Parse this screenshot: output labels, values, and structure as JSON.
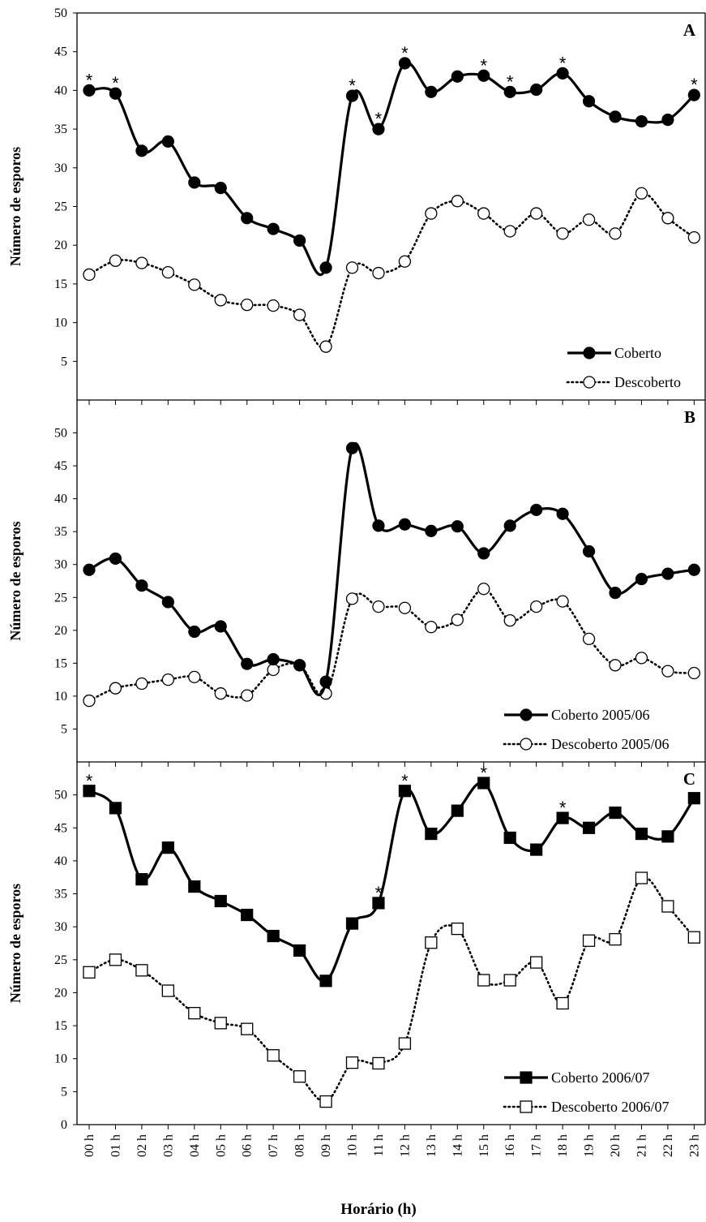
{
  "x_axis_label": "Horário (h)",
  "chart_data": [
    {
      "type": "line",
      "panel": "A",
      "ylabel": "Número de esporos",
      "ylim": [
        0,
        50
      ],
      "yticks": [
        5,
        10,
        15,
        20,
        25,
        30,
        35,
        40,
        45,
        50
      ],
      "categories": [
        "00 h",
        "01 h",
        "02 h",
        "03 h",
        "04 h",
        "05 h",
        "06 h",
        "07 h",
        "08 h",
        "09 h",
        "10 h",
        "11 h",
        "12 h",
        "13 h",
        "14 h",
        "15 h",
        "16 h",
        "17 h",
        "18 h",
        "19 h",
        "20 h",
        "21 h",
        "22 h",
        "23 h"
      ],
      "legend_position": "bottom-right",
      "series": [
        {
          "name": "Coberto",
          "marker": "filled-circle",
          "line": "solid",
          "values": [
            40.0,
            39.6,
            32.2,
            33.4,
            28.1,
            27.4,
            23.5,
            22.1,
            20.6,
            17.1,
            39.3,
            35.0,
            43.5,
            39.8,
            41.8,
            41.9,
            39.8,
            40.1,
            42.2,
            38.6,
            36.6,
            36.0,
            36.2,
            39.4
          ],
          "significant": [
            "00 h",
            "01 h",
            "10 h",
            "11 h",
            "12 h",
            "15 h",
            "16 h",
            "18 h",
            "23 h"
          ]
        },
        {
          "name": "Descoberto",
          "marker": "open-circle",
          "line": "dotted",
          "values": [
            16.2,
            18.0,
            17.7,
            16.5,
            14.9,
            12.9,
            12.3,
            12.2,
            11.0,
            6.9,
            17.1,
            16.4,
            17.9,
            24.1,
            25.7,
            24.1,
            21.8,
            24.1,
            21.5,
            23.3,
            21.5,
            26.7,
            23.5,
            21.0
          ],
          "significant": []
        }
      ]
    },
    {
      "type": "line",
      "panel": "B",
      "ylabel": "Número de esporos",
      "ylim": [
        0,
        55
      ],
      "yticks": [
        5,
        10,
        15,
        20,
        25,
        30,
        35,
        40,
        45,
        50
      ],
      "categories": [
        "00 h",
        "01 h",
        "02 h",
        "03 h",
        "04 h",
        "05 h",
        "06 h",
        "07 h",
        "08 h",
        "09 h",
        "10 h",
        "11 h",
        "12 h",
        "13 h",
        "14 h",
        "15 h",
        "16 h",
        "17 h",
        "18 h",
        "19 h",
        "20 h",
        "21 h",
        "22 h",
        "23 h"
      ],
      "legend_position": "bottom-right",
      "series": [
        {
          "name": "Coberto 2005/06",
          "marker": "filled-circle",
          "line": "solid",
          "values": [
            29.2,
            30.9,
            26.8,
            24.3,
            19.8,
            20.6,
            14.9,
            15.6,
            14.7,
            12.2,
            47.7,
            35.9,
            36.1,
            35.1,
            35.8,
            31.7,
            35.9,
            38.3,
            37.7,
            32.0,
            25.7,
            27.8,
            28.6,
            29.2
          ],
          "significant": []
        },
        {
          "name": "Descoberto 2005/06",
          "marker": "open-circle",
          "line": "dotted",
          "values": [
            9.3,
            11.2,
            11.9,
            12.5,
            12.9,
            10.4,
            10.1,
            14.0,
            14.7,
            10.4,
            24.8,
            23.6,
            23.4,
            20.5,
            21.6,
            26.3,
            21.5,
            23.6,
            24.4,
            18.7,
            14.7,
            15.8,
            13.8,
            13.5
          ],
          "significant": []
        }
      ]
    },
    {
      "type": "line",
      "panel": "C",
      "ylabel": "Número de esporos",
      "ylim": [
        0,
        55
      ],
      "yticks": [
        0,
        5,
        10,
        15,
        20,
        25,
        30,
        35,
        40,
        45,
        50
      ],
      "categories": [
        "00 h",
        "01 h",
        "02 h",
        "03 h",
        "04 h",
        "05 h",
        "06 h",
        "07 h",
        "08 h",
        "09 h",
        "10 h",
        "11 h",
        "12 h",
        "13 h",
        "14 h",
        "15 h",
        "16 h",
        "17 h",
        "18 h",
        "19 h",
        "20 h",
        "21 h",
        "22 h",
        "23 h"
      ],
      "legend_position": "bottom-right",
      "series": [
        {
          "name": "Coberto 2006/07",
          "marker": "filled-square",
          "line": "solid",
          "values": [
            50.6,
            48.0,
            37.2,
            42.0,
            36.1,
            33.9,
            31.8,
            28.6,
            26.4,
            21.8,
            30.5,
            33.6,
            50.6,
            44.1,
            47.6,
            51.8,
            43.5,
            41.7,
            46.5,
            45.0,
            47.3,
            44.1,
            43.7,
            49.5
          ],
          "significant": [
            "00 h",
            "11 h",
            "12 h",
            "15 h",
            "18 h"
          ]
        },
        {
          "name": "Descoberto 2006/07",
          "marker": "open-square",
          "line": "dotted",
          "values": [
            23.1,
            25.0,
            23.4,
            20.3,
            16.9,
            15.4,
            14.5,
            10.5,
            7.3,
            3.5,
            9.4,
            9.3,
            12.3,
            27.6,
            29.7,
            21.9,
            21.9,
            24.6,
            18.4,
            27.9,
            28.1,
            37.4,
            33.1,
            28.4
          ],
          "significant": []
        }
      ]
    }
  ]
}
